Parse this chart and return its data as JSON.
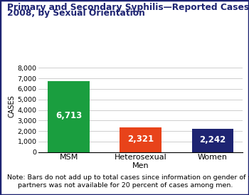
{
  "title_line1": "Primary and Secondary Syphilis—Reported Cases,",
  "title_line2": "2008, by Sexual Orientation",
  "categories": [
    "MSM",
    "Heterosexual\nMen",
    "Women"
  ],
  "values": [
    6713,
    2321,
    2242
  ],
  "bar_colors": [
    "#1a9e3f",
    "#e8431a",
    "#1e2472"
  ],
  "bar_labels": [
    "6,713",
    "2,321",
    "2,242"
  ],
  "ylabel": "CASES",
  "ylim": [
    0,
    8700
  ],
  "yticks": [
    0,
    1000,
    2000,
    3000,
    4000,
    5000,
    6000,
    7000,
    8000
  ],
  "ytick_labels": [
    "0",
    "1,000",
    "2,000",
    "3,000",
    "4,000",
    "5,000",
    "6,000",
    "7,000",
    "8,000"
  ],
  "note_line1": "Note: Bars do not add up to total cases since information on gender of sex",
  "note_line2": "partners was not available for 20 percent of cases among men.",
  "title_color": "#1e2472",
  "title_fontsize": 8.8,
  "label_fontsize": 8.0,
  "note_fontsize": 6.8,
  "ylabel_fontsize": 7.0,
  "bar_label_fontsize": 8.5,
  "background_color": "#ffffff",
  "border_color": "#1e2472"
}
